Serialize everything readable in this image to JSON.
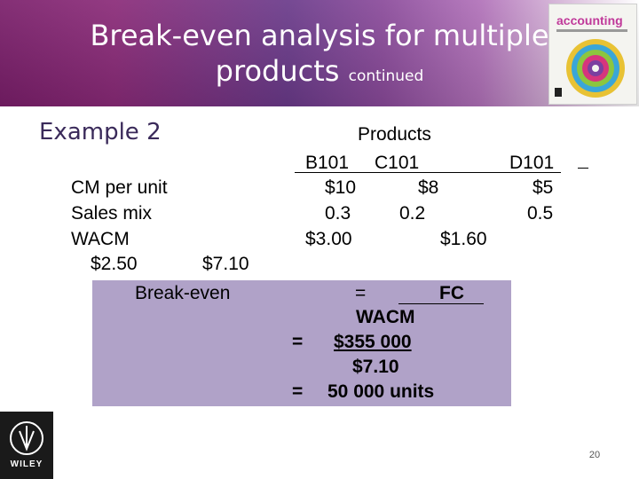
{
  "slide": {
    "title_main": "Break-even analysis for multiple",
    "title_line2": "products",
    "title_small": "continued",
    "example": "Example 2",
    "page_number": "20"
  },
  "book": {
    "word": "accounting"
  },
  "publisher": {
    "logo_text": "WILEY"
  },
  "table": {
    "header": "Products",
    "products": [
      "B101",
      "C101",
      "D101"
    ],
    "rows": [
      {
        "label": "CM per unit",
        "values": [
          "$10",
          "$8",
          "$5"
        ]
      },
      {
        "label": "Sales mix",
        "values": [
          "0.3",
          "0.2",
          "0.5"
        ]
      },
      {
        "label": "WACM",
        "values": [
          "$3.00",
          "$1.60"
        ]
      }
    ],
    "wacm_extra": [
      "$2.50",
      "$7.10"
    ]
  },
  "breakeven": {
    "label": "Break-even",
    "eq1": "=",
    "numerator": "FC",
    "denominator": "WACM",
    "eq2": "=",
    "value_num": "$355 000",
    "value_den": "$7.10",
    "eq3": "=",
    "result": "50 000 units"
  },
  "colors": {
    "header_purple": "#7a1e6a",
    "box": "#b0a2c8"
  }
}
